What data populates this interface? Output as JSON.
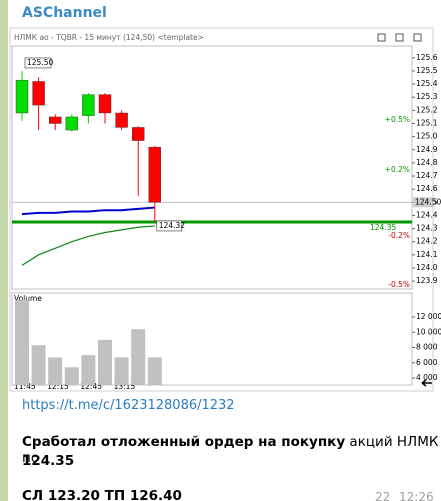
{
  "header": {
    "channel": "ASChannel"
  },
  "chart": {
    "type": "candlestick",
    "title": "НЛМК ао - TQBR - 15 минут (124,50) <template>",
    "categories": [
      "11:45",
      null,
      "12:15",
      null,
      "12:45",
      null,
      "13:15",
      null,
      null
    ],
    "open": [
      125.18,
      125.42,
      125.15,
      125.05,
      125.16,
      125.32,
      125.18,
      125.07,
      124.92
    ],
    "high": [
      125.5,
      125.45,
      125.17,
      125.17,
      125.33,
      125.33,
      125.2,
      125.08,
      124.93
    ],
    "low": [
      125.12,
      125.05,
      125.05,
      125.04,
      125.1,
      125.1,
      125.05,
      124.55,
      124.35
    ],
    "close": [
      125.43,
      125.24,
      125.1,
      125.15,
      125.32,
      125.18,
      125.07,
      124.97,
      124.5
    ],
    "colors": {
      "up": "#00dd00",
      "down": "#ff0000"
    },
    "ylim": [
      123.84,
      125.69
    ],
    "yticks": [
      125.6,
      125.5,
      125.4,
      125.3,
      125.2,
      125.1,
      {
        "value": 125,
        "label": "125.0"
      },
      124.9,
      124.8,
      124.7,
      124.6,
      124.5,
      124.4,
      124.3,
      124.2,
      124.1,
      {
        "value": 124,
        "label": "124.0"
      },
      123.9
    ],
    "last_price": {
      "value": 124.5,
      "label": "124.50"
    },
    "high_label": {
      "value": 125.5,
      "label": "125.50"
    },
    "level": {
      "value": 124.35,
      "label": "124.35",
      "color": "#009900"
    },
    "pct_labels": [
      "+0.5%",
      "+0.2%",
      "-0.2%",
      "-0.5%"
    ],
    "ma_blue": {
      "color": "#0000cc",
      "values": [
        124.41,
        124.42,
        124.42,
        124.43,
        124.43,
        124.44,
        124.44,
        124.45,
        124.46
      ]
    },
    "ma_green": {
      "color": "#118811",
      "values": [
        124.02,
        124.1,
        124.15,
        124.2,
        124.24,
        124.27,
        124.29,
        124.31,
        124.32
      ],
      "label": "124.32"
    },
    "volume": {
      "label": "Volume",
      "color": "#c0c0c0",
      "values": [
        14200,
        8300,
        6700,
        5400,
        7000,
        9000,
        6700,
        10400,
        6700
      ],
      "ylim": [
        3080,
        14760
      ],
      "yticks": [
        {
          "value": 12000,
          "label": "12 000"
        },
        {
          "value": 10000,
          "label": "10 000"
        },
        {
          "value": 8000,
          "label": "8 000"
        },
        {
          "value": 6000,
          "label": "6 000"
        },
        {
          "value": 4000,
          "label": "4 000"
        }
      ]
    }
  },
  "message": {
    "link": "https://t.me/c/1623128086/1232",
    "line1_bold": "Сработал отложенный ордер на покупку",
    "line1_rest": " акций НЛМК по",
    "line2_bold": "124.35",
    "line3_bold": "СЛ 123.20 ТП 126.40",
    "views": "22",
    "time": "12:26"
  }
}
